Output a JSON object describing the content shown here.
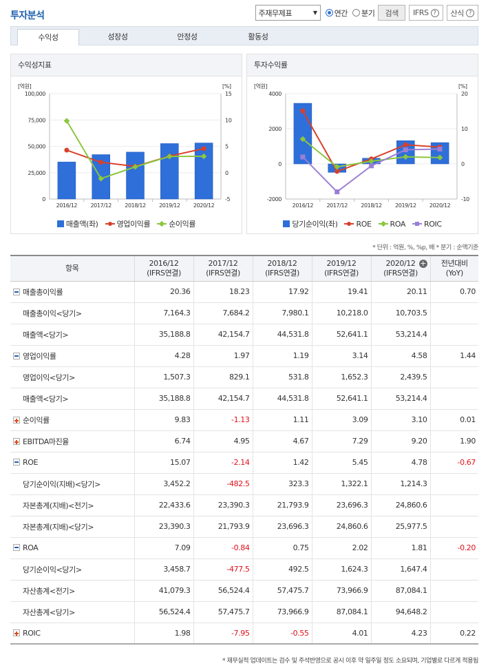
{
  "page_title": "투자분석",
  "toolbar": {
    "select_value": "주재무제표",
    "radio_annual": "연간",
    "radio_quarter": "분기",
    "search_label": "검색",
    "ifrs_label": "IFRS",
    "formula_label": "산식",
    "help_glyph": "?"
  },
  "tabs": [
    "수익성",
    "성장성",
    "안정성",
    "활동성"
  ],
  "chart_left": {
    "panel_title": "수익성지표",
    "unit_left": "[억원]",
    "unit_right": "[%]",
    "y_left_ticks": [
      "100,000",
      "75,000",
      "50,000",
      "25,000",
      "0"
    ],
    "y_right_ticks": [
      "15",
      "10",
      "5",
      "0",
      "-5"
    ],
    "legend": [
      "매출액(좌)",
      "영업이익률",
      "순이익률"
    ]
  },
  "chart_right": {
    "panel_title": "투자수익률",
    "unit_left": "[억원]",
    "unit_right": "[%]",
    "y_left_ticks": [
      "4000",
      "2000",
      "0",
      "-2000"
    ],
    "y_right_ticks": [
      "20",
      "10",
      "0",
      "-10"
    ],
    "legend": [
      "당기순이익(좌)",
      "ROE",
      "ROA",
      "ROIC"
    ]
  },
  "chart_data": [
    {
      "type": "bar",
      "title": "수익성지표",
      "categories": [
        "2016/12",
        "2017/12",
        "2018/12",
        "2019/12",
        "2020/12"
      ],
      "ylim_left": [
        0,
        100000
      ],
      "ylim_right": [
        -5,
        15
      ],
      "series": [
        {
          "name": "매출액(좌)",
          "type": "bar",
          "axis": "left",
          "color": "#2e6fd9",
          "values": [
            35188.8,
            42154.7,
            44531.8,
            52641.1,
            53214.4
          ]
        },
        {
          "name": "영업이익률",
          "type": "line",
          "axis": "right",
          "color": "#d9402b",
          "values": [
            4.28,
            1.97,
            1.19,
            3.14,
            4.58
          ]
        },
        {
          "name": "순이익률",
          "type": "line",
          "axis": "right",
          "color": "#8cc63f",
          "values": [
            9.83,
            -1.13,
            1.11,
            3.09,
            3.1
          ]
        }
      ]
    },
    {
      "type": "bar",
      "title": "투자수익률",
      "categories": [
        "2016/12",
        "2017/12",
        "2018/12",
        "2019/12",
        "2020/12"
      ],
      "ylim_left": [
        -2000,
        4000
      ],
      "ylim_right": [
        -10,
        20
      ],
      "series": [
        {
          "name": "당기순이익(좌)",
          "type": "bar",
          "axis": "left",
          "color": "#2e6fd9",
          "values": [
            3452.2,
            -482.5,
            323.3,
            1322.1,
            1214.3
          ]
        },
        {
          "name": "ROE",
          "type": "line",
          "axis": "right",
          "color": "#d9402b",
          "values": [
            15.07,
            -2.14,
            1.42,
            5.45,
            4.78
          ]
        },
        {
          "name": "ROA",
          "type": "line",
          "axis": "right",
          "color": "#8cc63f",
          "values": [
            7.09,
            -0.84,
            0.75,
            2.02,
            1.81
          ]
        },
        {
          "name": "ROIC",
          "type": "line",
          "axis": "right",
          "color": "#9b7fd6",
          "values": [
            1.98,
            -7.95,
            -0.55,
            4.01,
            4.23
          ]
        }
      ]
    }
  ],
  "unit_note": "* 단위 : 억원, %, %p, 배   * 분기 : 순액기준",
  "table": {
    "headers": [
      "항목",
      "2016/12\n(IFRS연결)",
      "2017/12\n(IFRS연결)",
      "2018/12\n(IFRS연결)",
      "2019/12\n(IFRS연결)",
      "2020/12\n(IFRS연결)",
      "전년대비\n(YoY)"
    ],
    "rows": [
      {
        "label": "매출총이익률",
        "toggle": "minus",
        "values": [
          "20.36",
          "18.23",
          "17.92",
          "19.41",
          "20.11",
          "0.70"
        ]
      },
      {
        "label": "매출총이익<당기>",
        "sub": true,
        "values": [
          "7,164.3",
          "7,684.2",
          "7,980.1",
          "10,218.0",
          "10,703.5",
          ""
        ]
      },
      {
        "label": "매출액<당기>",
        "sub": true,
        "values": [
          "35,188.8",
          "42,154.7",
          "44,531.8",
          "52,641.1",
          "53,214.4",
          ""
        ]
      },
      {
        "label": "영업이익률",
        "toggle": "minus",
        "values": [
          "4.28",
          "1.97",
          "1.19",
          "3.14",
          "4.58",
          "1.44"
        ]
      },
      {
        "label": "영업이익<당기>",
        "sub": true,
        "values": [
          "1,507.3",
          "829.1",
          "531.8",
          "1,652.3",
          "2,439.5",
          ""
        ]
      },
      {
        "label": "매출액<당기>",
        "sub": true,
        "values": [
          "35,188.8",
          "42,154.7",
          "44,531.8",
          "52,641.1",
          "53,214.4",
          ""
        ]
      },
      {
        "label": "순이익률",
        "toggle": "plus",
        "values": [
          "9.83",
          "-1.13",
          "1.11",
          "3.09",
          "3.10",
          "0.01"
        ]
      },
      {
        "label": "EBITDA마진율",
        "toggle": "plus",
        "values": [
          "6.74",
          "4.95",
          "4.67",
          "7.29",
          "9.20",
          "1.90"
        ]
      },
      {
        "label": "ROE",
        "toggle": "minus",
        "values": [
          "15.07",
          "-2.14",
          "1.42",
          "5.45",
          "4.78",
          "-0.67"
        ]
      },
      {
        "label": "당기순이익(지배)<당기>",
        "sub": true,
        "values": [
          "3,452.2",
          "-482.5",
          "323.3",
          "1,322.1",
          "1,214.3",
          ""
        ]
      },
      {
        "label": "자본총계(지배)<전기>",
        "sub": true,
        "values": [
          "22,433.6",
          "23,390.3",
          "21,793.9",
          "23,696.3",
          "24,860.6",
          ""
        ]
      },
      {
        "label": "자본총계(지배)<당기>",
        "sub": true,
        "values": [
          "23,390.3",
          "21,793.9",
          "23,696.3",
          "24,860.6",
          "25,977.5",
          ""
        ]
      },
      {
        "label": "ROA",
        "toggle": "minus",
        "values": [
          "7.09",
          "-0.84",
          "0.75",
          "2.02",
          "1.81",
          "-0.20"
        ]
      },
      {
        "label": "당기순이익<당기>",
        "sub": true,
        "values": [
          "3,458.7",
          "-477.5",
          "492.5",
          "1,624.3",
          "1,647.4",
          ""
        ]
      },
      {
        "label": "자산총계<전기>",
        "sub": true,
        "values": [
          "41,079.3",
          "56,524.4",
          "57,475.7",
          "73,966.9",
          "87,084.1",
          ""
        ]
      },
      {
        "label": "자산총계<당기>",
        "sub": true,
        "values": [
          "56,524.4",
          "57,475.7",
          "73,966.9",
          "87,084.1",
          "94,648.2",
          ""
        ]
      },
      {
        "label": "ROIC",
        "toggle": "plus",
        "values": [
          "1.98",
          "-7.95",
          "-0.55",
          "4.01",
          "4.23",
          "0.22"
        ]
      }
    ]
  },
  "footnote": "* 재무실적 업데이트는 검수 및 주석반영으로 공시 이후 약 일주일 정도 소요되며, 기업별로 다르게 적용됨",
  "colors": {
    "accent": "#1f5fae",
    "bar": "#2e6fd9",
    "red": "#d9402b",
    "green": "#8cc63f",
    "purple": "#9b7fd6",
    "negative": "#e0101a",
    "toggle_minus": "#1f5fae",
    "toggle_plus": "#e04a1a"
  }
}
